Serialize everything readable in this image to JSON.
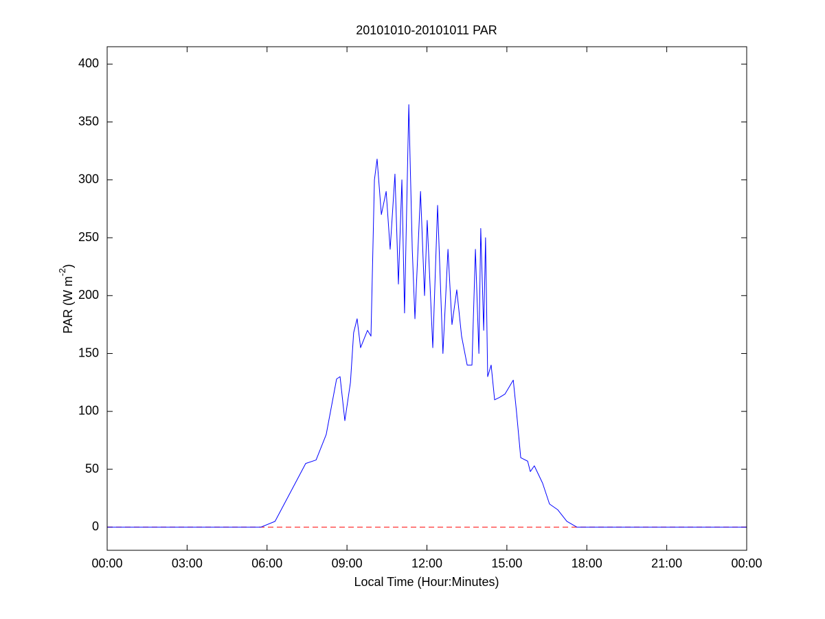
{
  "chart_data": {
    "type": "line",
    "title": "20101010-20101011 PAR",
    "x_label": "Local Time (Hour:Minutes)",
    "y_label": {
      "text": "PAR (W m",
      "superscript": "-2",
      "suffix": ")"
    },
    "xlim": [
      0,
      24
    ],
    "xticks": [
      {
        "value": 0,
        "label": "00:00"
      },
      {
        "value": 3,
        "label": "03:00"
      },
      {
        "value": 6,
        "label": "06:00"
      },
      {
        "value": 9,
        "label": "09:00"
      },
      {
        "value": 12,
        "label": "12:00"
      },
      {
        "value": 15,
        "label": "15:00"
      },
      {
        "value": 18,
        "label": "18:00"
      },
      {
        "value": 21,
        "label": "21:00"
      },
      {
        "value": 24,
        "label": "00:00"
      }
    ],
    "ylim": [
      -20,
      415
    ],
    "yticks": [
      0,
      50,
      100,
      150,
      200,
      250,
      300,
      350,
      400
    ],
    "grid": false,
    "reference_line": {
      "value": 0,
      "color": "#ff0000"
    },
    "series": [
      {
        "color": "#0000ff",
        "x": [
          0,
          5.77,
          6.3,
          7.06,
          7.45,
          7.84,
          8.22,
          8.61,
          8.74,
          8.92,
          9.13,
          9.25,
          9.38,
          9.51,
          9.77,
          9.9,
          10.03,
          10.13,
          10.29,
          10.47,
          10.62,
          10.8,
          10.93,
          11.06,
          11.16,
          11.32,
          11.45,
          11.55,
          11.76,
          11.91,
          12.01,
          12.22,
          12.4,
          12.6,
          12.79,
          12.94,
          13.12,
          13.3,
          13.51,
          13.69,
          13.82,
          13.95,
          14.02,
          14.13,
          14.2,
          14.28,
          14.41,
          14.54,
          14.72,
          14.93,
          15.24,
          15.36,
          15.52,
          15.78,
          15.88,
          16.03,
          16.34,
          16.6,
          16.91,
          17.25,
          17.63,
          24
        ],
        "values": [
          0,
          0,
          5,
          38,
          55,
          58,
          80,
          128,
          130,
          92,
          125,
          168,
          180,
          155,
          170,
          165,
          300,
          318,
          270,
          290,
          240,
          305,
          210,
          300,
          185,
          365,
          240,
          180,
          290,
          200,
          265,
          155,
          278,
          150,
          240,
          175,
          205,
          165,
          140,
          140,
          240,
          150,
          258,
          170,
          250,
          130,
          140,
          110,
          112,
          115,
          127,
          100,
          60,
          57,
          48,
          53,
          38,
          20,
          15,
          5,
          0,
          0
        ]
      }
    ]
  }
}
